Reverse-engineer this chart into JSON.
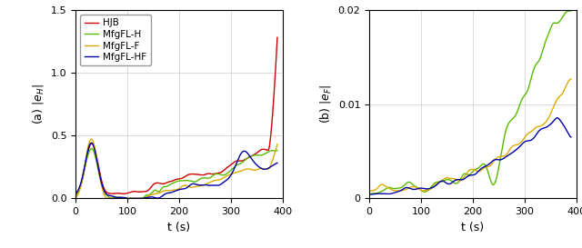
{
  "xlabel": "t (s)",
  "ylabel_a": "(a) $|e_H|$",
  "ylabel_b": "(b) $|e_F|$",
  "xlim": [
    0,
    400
  ],
  "ylim_a": [
    0,
    1.5
  ],
  "ylim_b": [
    0,
    0.02
  ],
  "yticks_a": [
    0,
    0.5,
    1.0,
    1.5
  ],
  "yticks_b": [
    0,
    0.01,
    0.02
  ],
  "xticks": [
    0,
    100,
    200,
    300,
    400
  ],
  "colors": {
    "HJB": "#cc0000",
    "MfgFL-H": "#55bb00",
    "MfgFL-F": "#ddaa00",
    "MfgFL-HF": "#0000aa"
  },
  "legend_labels": [
    "HJB",
    "MfgFL-H",
    "MfgFL-F",
    "MfgFL-HF"
  ],
  "linewidth": 1.0,
  "figsize": [
    6.4,
    2.73
  ],
  "dpi": 100,
  "background": "#ffffff",
  "grid_color": "#cccccc",
  "seed": 42
}
